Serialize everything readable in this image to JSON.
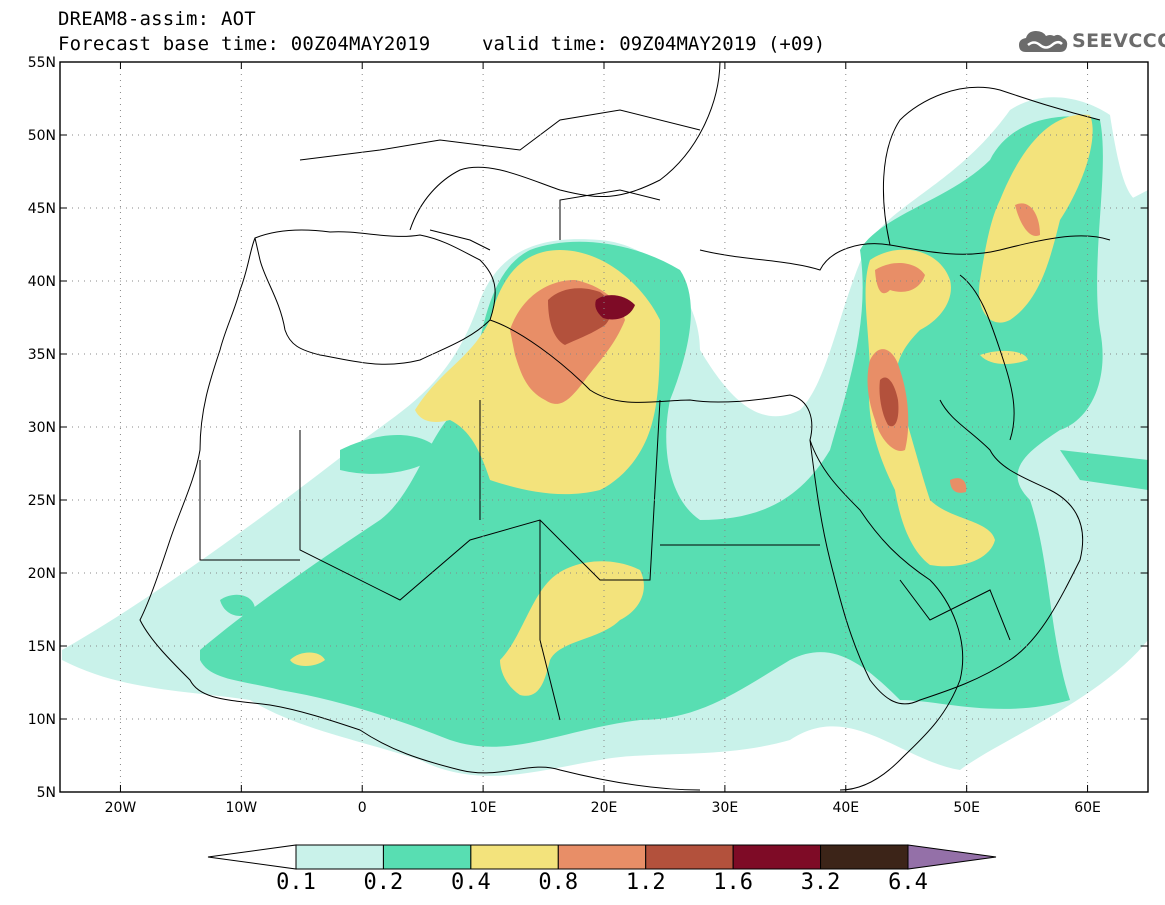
{
  "header": {
    "title_line1": "DREAM8-assim: AOT",
    "title_line2": "Forecast base time: 00Z04MAY2019",
    "valid_time": "valid time: 09Z04MAY2019 (+09)"
  },
  "logo": {
    "text": "SEEVCCC",
    "icon": "cloud-logo-icon"
  },
  "map": {
    "lon_range": [
      -25,
      65
    ],
    "lat_range": [
      5,
      55
    ],
    "lon_ticks": [
      {
        "lon": -20,
        "label": "20W"
      },
      {
        "lon": -10,
        "label": "10W"
      },
      {
        "lon": 0,
        "label": "0"
      },
      {
        "lon": 10,
        "label": "10E"
      },
      {
        "lon": 20,
        "label": "20E"
      },
      {
        "lon": 30,
        "label": "30E"
      },
      {
        "lon": 40,
        "label": "40E"
      },
      {
        "lon": 50,
        "label": "50E"
      },
      {
        "lon": 60,
        "label": "60E"
      }
    ],
    "lat_ticks": [
      {
        "lat": 55,
        "label": "55N"
      },
      {
        "lat": 50,
        "label": "50N"
      },
      {
        "lat": 45,
        "label": "45N"
      },
      {
        "lat": 40,
        "label": "40N"
      },
      {
        "lat": 35,
        "label": "35N"
      },
      {
        "lat": 30,
        "label": "30N"
      },
      {
        "lat": 25,
        "label": "25N"
      },
      {
        "lat": 20,
        "label": "20N"
      },
      {
        "lat": 15,
        "label": "15N"
      },
      {
        "lat": 10,
        "label": "10N"
      },
      {
        "lat": 5,
        "label": "5N"
      }
    ]
  },
  "colorbar": {
    "labels": [
      "0.1",
      "0.2",
      "0.4",
      "0.8",
      "1.2",
      "1.6",
      "3.2",
      "6.4"
    ],
    "colors": [
      "#ffffff",
      "#c9f2ea",
      "#58deb2",
      "#f3e37c",
      "#e88e67",
      "#b3513c",
      "#7e0b26",
      "#3c2418",
      "#9470a8"
    ]
  }
}
